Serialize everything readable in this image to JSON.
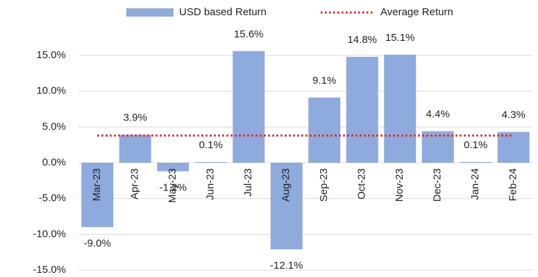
{
  "chart_data": {
    "type": "bar",
    "categories": [
      "Mar-23",
      "Apr-23",
      "May-23",
      "Jun-23",
      "Jul-23",
      "Aug-23",
      "Sep-23",
      "Oct-23",
      "Nov-23",
      "Dec-23",
      "Jan-24",
      "Feb-24"
    ],
    "series": [
      {
        "name": "USD based Return",
        "type": "bar",
        "color": "#8faadc",
        "values": [
          -9.0,
          3.9,
          -1.2,
          0.1,
          15.6,
          -12.1,
          9.1,
          14.8,
          15.1,
          4.4,
          0.1,
          4.3
        ],
        "value_labels": [
          "-9.0%",
          "3.9%",
          "-1.2%",
          "0.1%",
          "15.6%",
          "-12.1%",
          "9.1%",
          "14.8%",
          "15.1%",
          "4.4%",
          "0.1%",
          "4.3%"
        ]
      },
      {
        "name": "Average Return",
        "type": "line",
        "color": "#e8191b",
        "values": [
          3.8,
          3.8,
          3.8,
          3.8,
          3.8,
          3.8,
          3.8,
          3.8,
          3.8,
          3.8,
          3.8,
          3.8
        ]
      }
    ],
    "ylim": [
      -15,
      15
    ],
    "yticks": [
      {
        "value": -15,
        "label": "-15.0%"
      },
      {
        "value": -10,
        "label": "-10.0%"
      },
      {
        "value": -5,
        "label": "-5.0%"
      },
      {
        "value": 0,
        "label": "0.0%"
      },
      {
        "value": 5,
        "label": "5.0%"
      },
      {
        "value": 10,
        "label": "10.0%"
      },
      {
        "value": 15,
        "label": "15.0%"
      }
    ],
    "grid": true,
    "legend": "top"
  }
}
